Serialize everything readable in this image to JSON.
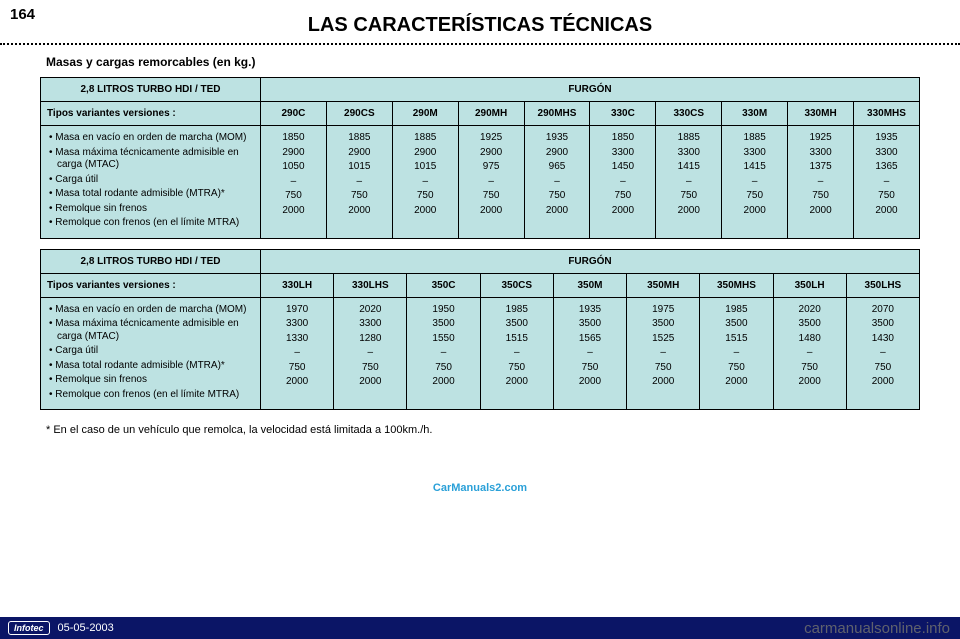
{
  "page_number": "164",
  "page_title": "LAS CARACTERÍSTICAS TÉCNICAS",
  "subtitle": "Masas y cargas remorcables (en kg.)",
  "footnote": "* En el caso de un vehículo que remolca, la velocidad está limitada a 100km./h.",
  "watermark_mid": "CarManuals2.com",
  "bottom_bar": {
    "brand": "Infotec",
    "date": "05-05-2003"
  },
  "site_watermark": "carmanualsonline.info",
  "colors": {
    "table_bg": "#bde2e2",
    "table_border": "#000000",
    "page_bg": "#ffffff",
    "bar_bg": "#0b1566",
    "bar_text": "#ffffff",
    "watermark_mid": "#2aa0d8",
    "site_watermark": "rgba(110,110,110,0.85)"
  },
  "row_labels": [
    "• Masa en vacío en orden de marcha (MOM)",
    "• Masa máxima técnicamente admisible en carga (MTAC)",
    "• Carga útil",
    "• Masa total rodante admisible (MTRA)*",
    "• Remolque sin frenos",
    "• Remolque con frenos (en el límite MTRA)"
  ],
  "table1": {
    "corner": "2,8 LITROS TURBO HDI / TED",
    "group": "FURGÓN",
    "versions_label": "Tipos variantes versiones :",
    "columns": [
      "290C",
      "290CS",
      "290M",
      "290MH",
      "290MHS",
      "330C",
      "330CS",
      "330M",
      "330MH",
      "330MHS"
    ],
    "rows": [
      [
        "1850",
        "1885",
        "1885",
        "1925",
        "1935",
        "1850",
        "1885",
        "1885",
        "1925",
        "1935"
      ],
      [
        "2900",
        "2900",
        "2900",
        "2900",
        "2900",
        "3300",
        "3300",
        "3300",
        "3300",
        "3300"
      ],
      [
        "1050",
        "1015",
        "1015",
        "975",
        "965",
        "1450",
        "1415",
        "1415",
        "1375",
        "1365"
      ],
      [
        "–",
        "–",
        "–",
        "–",
        "–",
        "–",
        "–",
        "–",
        "–",
        "–"
      ],
      [
        "750",
        "750",
        "750",
        "750",
        "750",
        "750",
        "750",
        "750",
        "750",
        "750"
      ],
      [
        "2000",
        "2000",
        "2000",
        "2000",
        "2000",
        "2000",
        "2000",
        "2000",
        "2000",
        "2000"
      ]
    ]
  },
  "table2": {
    "corner": "2,8 LITROS TURBO HDI / TED",
    "group": "FURGÓN",
    "versions_label": "Tipos variantes versiones :",
    "columns": [
      "330LH",
      "330LHS",
      "350C",
      "350CS",
      "350M",
      "350MH",
      "350MHS",
      "350LH",
      "350LHS"
    ],
    "rows": [
      [
        "1970",
        "2020",
        "1950",
        "1985",
        "1935",
        "1975",
        "1985",
        "2020",
        "2070"
      ],
      [
        "3300",
        "3300",
        "3500",
        "3500",
        "3500",
        "3500",
        "3500",
        "3500",
        "3500"
      ],
      [
        "1330",
        "1280",
        "1550",
        "1515",
        "1565",
        "1525",
        "1515",
        "1480",
        "1430"
      ],
      [
        "–",
        "–",
        "–",
        "–",
        "–",
        "–",
        "–",
        "–",
        "–"
      ],
      [
        "750",
        "750",
        "750",
        "750",
        "750",
        "750",
        "750",
        "750",
        "750"
      ],
      [
        "2000",
        "2000",
        "2000",
        "2000",
        "2000",
        "2000",
        "2000",
        "2000",
        "2000"
      ]
    ]
  }
}
